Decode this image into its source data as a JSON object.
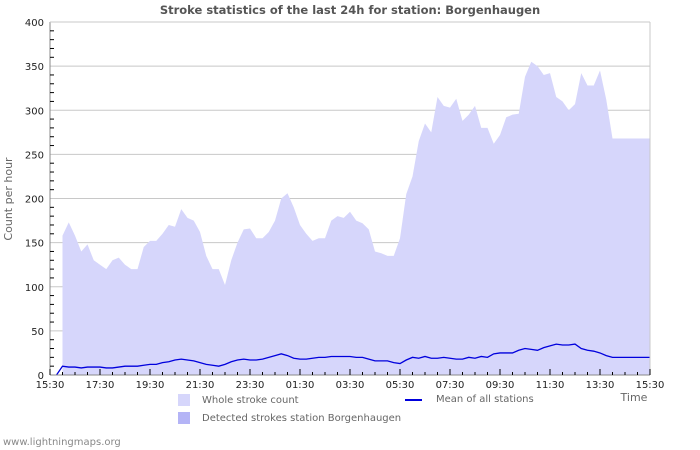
{
  "title": "Stroke statistics of the last 24h for station: Borgenhaugen",
  "footer": "www.lightningmaps.org",
  "colors": {
    "whole_fill": "#d6d6fb",
    "detected_fill": "#b4b4f6",
    "mean_line": "#0000dd",
    "grid": "#c8c8c8",
    "axis": "#888888"
  },
  "legend": [
    {
      "label": "Whole stroke count",
      "kind": "area",
      "color": "#d6d6fb"
    },
    {
      "label": "Mean of all stations",
      "kind": "line",
      "color": "#0000dd"
    },
    {
      "label": "Detected strokes station Borgenhaugen",
      "kind": "area",
      "color": "#b4b4f6"
    }
  ],
  "chart_data": {
    "type": "area",
    "title": "Stroke statistics of the last 24h for station: Borgenhaugen",
    "xlabel": "Time",
    "ylabel": "Count per hour",
    "ylim": [
      0,
      400
    ],
    "yticks": [
      0,
      50,
      100,
      150,
      200,
      250,
      300,
      350,
      400
    ],
    "xticks": [
      "15:30",
      "17:30",
      "19:30",
      "21:30",
      "23:30",
      "01:30",
      "03:30",
      "05:30",
      "07:30",
      "09:30",
      "11:30",
      "13:30",
      "15:30"
    ],
    "grid": true,
    "legend_position": "bottom",
    "x_minutes_from_start": [
      30,
      45,
      60,
      75,
      90,
      105,
      120,
      135,
      150,
      165,
      180,
      195,
      210,
      225,
      240,
      255,
      270,
      285,
      300,
      315,
      330,
      345,
      360,
      375,
      390,
      405,
      420,
      435,
      450,
      465,
      480,
      495,
      510,
      525,
      540,
      555,
      570,
      585,
      600,
      615,
      630,
      645,
      660,
      675,
      690,
      705,
      720,
      735,
      750,
      765,
      780,
      795,
      810,
      825,
      840,
      855,
      870,
      885,
      900,
      915,
      930,
      945,
      960,
      975,
      990,
      1005,
      1020,
      1035,
      1050,
      1065,
      1080,
      1095,
      1110,
      1125,
      1140,
      1155,
      1170,
      1185,
      1200,
      1215,
      1230,
      1245,
      1260,
      1275,
      1290,
      1305,
      1320,
      1335,
      1350,
      1365,
      1380,
      1395,
      1410,
      1425,
      1440
    ],
    "series": [
      {
        "name": "Whole stroke count",
        "values": [
          158,
          173,
          158,
          140,
          148,
          130,
          125,
          120,
          130,
          133,
          125,
          120,
          120,
          145,
          152,
          152,
          160,
          170,
          168,
          188,
          178,
          175,
          162,
          135,
          120,
          120,
          102,
          130,
          150,
          165,
          166,
          155,
          155,
          162,
          175,
          200,
          206,
          190,
          170,
          160,
          152,
          155,
          155,
          175,
          180,
          178,
          185,
          175,
          172,
          165,
          140,
          138,
          135,
          135,
          155,
          205,
          225,
          265,
          285,
          275,
          315,
          305,
          303,
          313,
          288,
          295,
          305,
          280,
          280,
          262,
          272,
          292,
          295,
          296,
          338,
          355,
          350,
          340,
          342,
          315,
          310,
          300,
          307,
          342,
          328,
          328,
          345,
          312,
          268,
          268,
          268,
          268,
          268,
          268,
          268
        ]
      },
      {
        "name": "Detected strokes station Borgenhaugen",
        "values": []
      },
      {
        "name": "Mean of all stations",
        "values": [
          10,
          9,
          9,
          8,
          9,
          9,
          9,
          8,
          8,
          9,
          10,
          10,
          10,
          11,
          12,
          12,
          14,
          15,
          17,
          18,
          17,
          16,
          14,
          12,
          11,
          10,
          12,
          15,
          17,
          18,
          17,
          17,
          18,
          20,
          22,
          24,
          22,
          19,
          18,
          18,
          19,
          20,
          20,
          21,
          21,
          21,
          21,
          20,
          20,
          18,
          16,
          16,
          16,
          14,
          13,
          17,
          20,
          19,
          21,
          19,
          19,
          20,
          19,
          18,
          18,
          20,
          19,
          21,
          20,
          24,
          25,
          25,
          25,
          28,
          30,
          29,
          28,
          31,
          33,
          35,
          34,
          34,
          35,
          30,
          28,
          27,
          25,
          22,
          20,
          20,
          20,
          20,
          20,
          20,
          20
        ]
      }
    ]
  }
}
